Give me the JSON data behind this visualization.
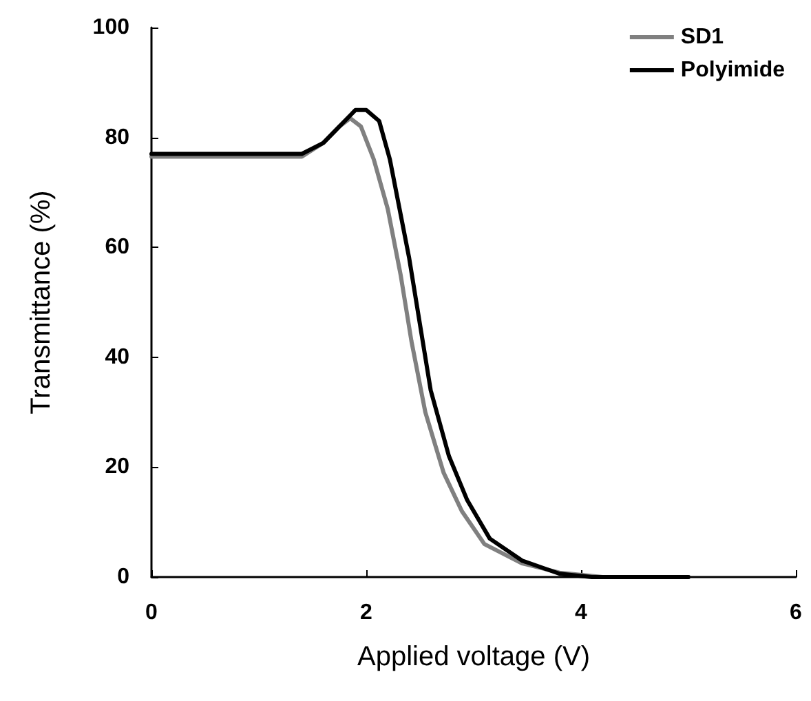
{
  "chart_data": {
    "type": "line",
    "xlabel": "Applied voltage (V)",
    "ylabel": "Transmittance (%)",
    "xlim": [
      0,
      6
    ],
    "xticks": [
      0,
      2,
      4,
      6
    ],
    "ylim": [
      0,
      100
    ],
    "yticks": [
      0,
      20,
      40,
      60,
      80,
      100
    ],
    "grid": false,
    "legend": "top right",
    "marker": "none",
    "line_style": "solid",
    "series": [
      {
        "name": "SD1",
        "color": "#808080",
        "x": [
          0,
          1.4,
          1.6,
          1.75,
          1.85,
          1.95,
          2.07,
          2.2,
          2.32,
          2.42,
          2.55,
          2.72,
          2.89,
          3.1,
          3.45,
          3.8,
          4.2,
          5
        ],
        "values": [
          76.5,
          76.5,
          79,
          82,
          83.5,
          82,
          76,
          67,
          55,
          43,
          30,
          19,
          12,
          6,
          2.5,
          0.8,
          0,
          0
        ]
      },
      {
        "name": "Polyimide",
        "color": "#000000",
        "x": [
          0,
          1.4,
          1.6,
          1.75,
          1.9,
          2.0,
          2.12,
          2.22,
          2.3,
          2.4,
          2.5,
          2.6,
          2.77,
          2.94,
          3.15,
          3.45,
          3.8,
          4.1,
          5
        ],
        "values": [
          77,
          77,
          79,
          82,
          85,
          85,
          83,
          76,
          68,
          58,
          46,
          34,
          22,
          14,
          7,
          3,
          0.6,
          0,
          0
        ]
      }
    ]
  }
}
